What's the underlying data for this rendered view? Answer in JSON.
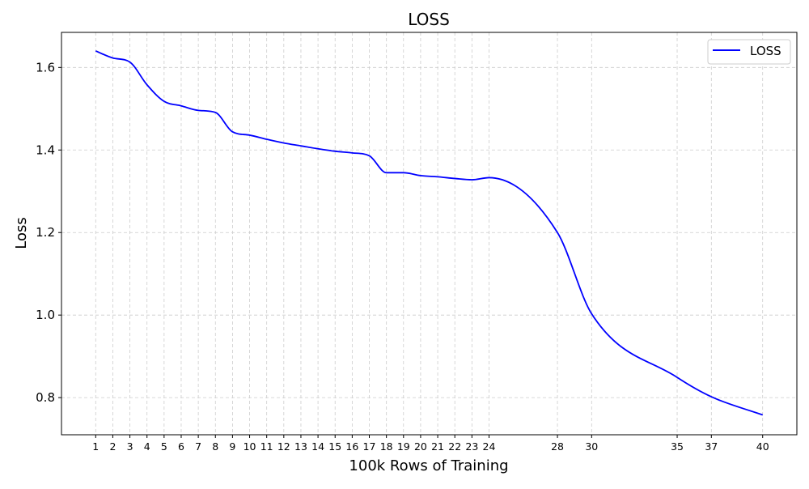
{
  "chart_data": {
    "type": "line",
    "title": "LOSS",
    "xlabel": "100k Rows of Training",
    "ylabel": "Loss",
    "xlim": [
      -1,
      42
    ],
    "ylim": [
      0.71,
      1.685
    ],
    "x_ticks": [
      1,
      2,
      3,
      4,
      5,
      6,
      7,
      8,
      9,
      10,
      11,
      12,
      13,
      14,
      15,
      16,
      17,
      18,
      19,
      20,
      21,
      22,
      23,
      24,
      28,
      30,
      35,
      37,
      40
    ],
    "y_ticks": [
      0.8,
      1.0,
      1.2,
      1.4,
      1.6
    ],
    "y_tick_labels": [
      "0.8",
      "1.0",
      "1.2",
      "1.4",
      "1.6"
    ],
    "grid": true,
    "grid_style": "dashed",
    "legend_position": "top-right",
    "series": [
      {
        "name": "LOSS",
        "color": "#0000ff",
        "x": [
          1,
          2,
          3,
          4,
          5,
          6,
          7,
          8,
          9,
          10,
          11,
          12,
          13,
          14,
          15,
          16,
          17,
          18,
          19,
          20,
          21,
          22,
          23,
          24,
          28,
          30,
          35,
          37,
          40
        ],
        "values": [
          1.64,
          1.623,
          1.613,
          1.558,
          1.518,
          1.507,
          1.496,
          1.491,
          1.444,
          1.436,
          1.426,
          1.417,
          1.41,
          1.403,
          1.397,
          1.393,
          1.386,
          1.345,
          1.345,
          1.338,
          1.335,
          1.331,
          1.328,
          1.333,
          1.2,
          1.003,
          0.849,
          0.802,
          0.758
        ]
      }
    ]
  }
}
